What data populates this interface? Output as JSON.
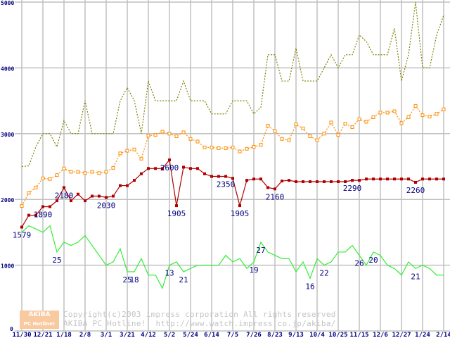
{
  "chart_data": {
    "type": "line",
    "title": "",
    "xlabel": "",
    "ylabel": "",
    "ylim": [
      0,
      5000
    ],
    "yticks": [
      "0",
      "1000",
      "2000",
      "3000",
      "4000",
      "5000"
    ],
    "xtick_labels": [
      "11/30",
      "12/21",
      "1/18",
      "2/8",
      "3/1",
      "3/21",
      "4/12",
      "5/2",
      "5/24",
      "6/14",
      "7/5",
      "7/26",
      "8/23",
      "9/13",
      "10/4",
      "10/25",
      "11/15",
      "12/6",
      "12/27",
      "1/24",
      "2/14"
    ],
    "grid": true,
    "series": [
      {
        "name": "olive-dotted",
        "color": "#808000",
        "style": "dotted",
        "values": [
          2500,
          2510,
          2800,
          3000,
          3000,
          2800,
          3200,
          3000,
          3000,
          3500,
          3000,
          3000,
          3000,
          3000,
          3500,
          3700,
          3500,
          3000,
          3800,
          3500,
          3500,
          3500,
          3500,
          3800,
          3500,
          3500,
          3500,
          3300,
          3300,
          3300,
          3500,
          3500,
          3500,
          3300,
          3400,
          4200,
          4200,
          3800,
          3800,
          4300,
          3800,
          3800,
          3800,
          4000,
          4200,
          4000,
          4200,
          4200,
          4500,
          4400,
          4200,
          4200,
          4200,
          4600,
          3800,
          4200,
          5000,
          4000,
          4000,
          4500,
          4800
        ]
      },
      {
        "name": "orange-dotted",
        "color": "#ff8c00",
        "style": "dotted-squares",
        "values": [
          1900,
          2100,
          2180,
          2320,
          2310,
          2370,
          2470,
          2420,
          2420,
          2400,
          2420,
          2400,
          2420,
          2480,
          2700,
          2740,
          2760,
          2620,
          2970,
          2980,
          3030,
          3000,
          2960,
          3020,
          2920,
          2880,
          2790,
          2790,
          2780,
          2780,
          2790,
          2730,
          2770,
          2800,
          2830,
          3120,
          3040,
          2920,
          2900,
          3140,
          3080,
          2960,
          2900,
          3000,
          3170,
          2980,
          3150,
          3100,
          3220,
          3180,
          3250,
          3320,
          3320,
          3340,
          3160,
          3250,
          3420,
          3280,
          3260,
          3300,
          3370
        ]
      },
      {
        "name": "red-price",
        "color": "#b00000",
        "style": "solid-squares",
        "values": [
          1579,
          1760,
          1760,
          1890,
          1890,
          1980,
          2180,
          1980,
          2080,
          1980,
          2050,
          2050,
          2030,
          2050,
          2210,
          2210,
          2290,
          2390,
          2470,
          2470,
          2470,
          2600,
          1905,
          2490,
          2470,
          2470,
          2390,
          2350,
          2350,
          2350,
          2320,
          1905,
          2290,
          2310,
          2310,
          2180,
          2160,
          2280,
          2290,
          2270,
          2270,
          2270,
          2270,
          2270,
          2270,
          2270,
          2270,
          2290,
          2290,
          2310,
          2310,
          2310,
          2310,
          2310,
          2310,
          2310,
          2260,
          2310,
          2310,
          2310,
          2310
        ],
        "labels": [
          {
            "i": 0,
            "text": "1579"
          },
          {
            "i": 3,
            "text": "1890"
          },
          {
            "i": 6,
            "text": "2180"
          },
          {
            "i": 12,
            "text": "2030"
          },
          {
            "i": 21,
            "text": "2600"
          },
          {
            "i": 22,
            "text": "1905"
          },
          {
            "i": 29,
            "text": "2350"
          },
          {
            "i": 31,
            "text": "1905"
          },
          {
            "i": 36,
            "text": "2160"
          },
          {
            "i": 47,
            "text": "2290"
          },
          {
            "i": 56,
            "text": "2260"
          }
        ]
      },
      {
        "name": "green-count",
        "color": "#33ee33",
        "style": "solid",
        "values": [
          1500,
          1600,
          1550,
          1500,
          1600,
          1200,
          1350,
          1300,
          1350,
          1450,
          1300,
          1150,
          1000,
          1050,
          1250,
          900,
          900,
          1100,
          850,
          850,
          650,
          1000,
          1050,
          900,
          950,
          1000,
          1000,
          1000,
          1000,
          1150,
          1050,
          1100,
          950,
          1050,
          1350,
          1200,
          1150,
          1100,
          1100,
          900,
          1050,
          800,
          1100,
          1000,
          1050,
          1200,
          1200,
          1300,
          1150,
          1000,
          1200,
          1150,
          1000,
          950,
          850,
          1050,
          950,
          1000,
          950,
          850,
          850
        ],
        "labels": [
          {
            "i": 5,
            "text": "25"
          },
          {
            "i": 15,
            "text": "25"
          },
          {
            "i": 16,
            "text": "18"
          },
          {
            "i": 21,
            "text": "13"
          },
          {
            "i": 23,
            "text": "21"
          },
          {
            "i": 33,
            "text": "19"
          },
          {
            "i": 34,
            "text": "27"
          },
          {
            "i": 41,
            "text": "16"
          },
          {
            "i": 43,
            "text": "22"
          },
          {
            "i": 48,
            "text": "26"
          },
          {
            "i": 50,
            "text": "20"
          },
          {
            "i": 56,
            "text": "21"
          }
        ]
      }
    ]
  },
  "watermark": {
    "line1": "Copyright(c)2003 impress corporation All rights reserved.",
    "line2": "AKIBA PC Hotline!  http://www.watch.impress.co.jp/akiba/",
    "logo_top": "AKIBA",
    "logo_bottom": "PC Hotline!"
  }
}
